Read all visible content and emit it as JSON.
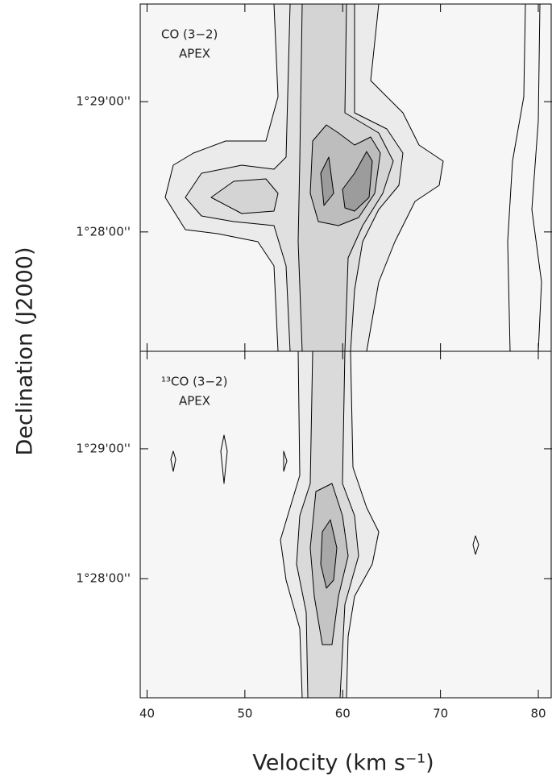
{
  "chart_data": [
    {
      "type": "contour",
      "annotations": [
        "CO (3−2)",
        "APEX"
      ],
      "ylabel": "Declination (J2000)",
      "xlim": [
        39.3,
        81.4
      ],
      "xticks": [
        40,
        50,
        60,
        70,
        80
      ],
      "ylim": [
        5225,
        5385
      ],
      "yticks": [
        {
          "value": 5340,
          "label": "1°29'00''"
        },
        {
          "value": 5280,
          "label": "1°28'00''"
        }
      ]
    },
    {
      "type": "contour",
      "annotations": [
        "¹³CO (3−2)",
        "APEX"
      ],
      "xlabel": "Velocity (km s⁻¹)",
      "xlim": [
        39.3,
        81.4
      ],
      "xticks": [
        40,
        50,
        60,
        70,
        80
      ],
      "ylim": [
        5225,
        5385
      ],
      "yticks": [
        {
          "value": 5340,
          "label": "1°29'00''"
        },
        {
          "value": 5280,
          "label": "1°28'00''"
        }
      ]
    }
  ]
}
